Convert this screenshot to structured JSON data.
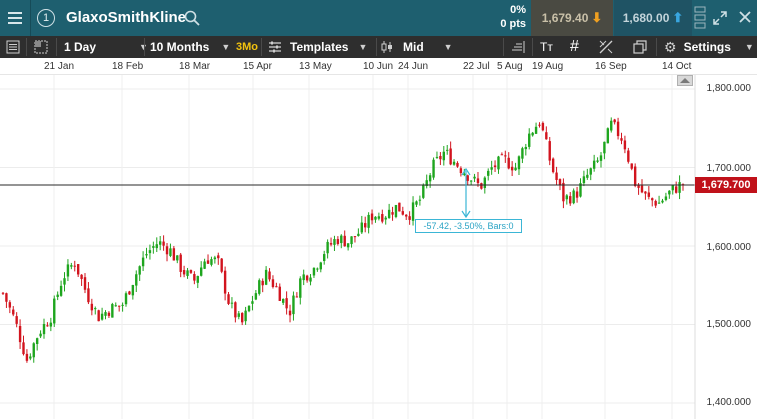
{
  "header": {
    "instrument_number": "1",
    "instrument_name": "GlaxoSmithKline",
    "change_percent": "0%",
    "change_points": "0 pts",
    "sell_price": "1,679.40",
    "buy_price": "1,680.00"
  },
  "toolbar": {
    "interval": "1 Day",
    "range": "10 Months",
    "range_badge": "3Mo",
    "templates_label": "Templates",
    "price_type": "Mid",
    "settings_label": "Settings"
  },
  "date_axis": [
    "21 Jan",
    "18 Feb",
    "18 Mar",
    "15 Apr",
    "13 May",
    "10 Jun",
    "24 Jun",
    "22 Jul",
    "5 Aug",
    "19 Aug",
    "16 Sep",
    "14 Oct"
  ],
  "price_axis": [
    "1,800.000",
    "1,700.000",
    "1,600.000",
    "1,500.000",
    "1,400.000"
  ],
  "current_price_label": "1,679.700",
  "measure_readout": "-57.42, -3.50%, Bars:0",
  "colors": {
    "header_bg": "#1e5f6f",
    "toolbar_bg": "#2e2e2e",
    "up_candle": "#1ea51e",
    "down_candle": "#d2141e",
    "current_price": "#c0111a",
    "measure": "#3bb6d6"
  },
  "chart_data": {
    "type": "candlestick",
    "y_range": [
      1400,
      1800
    ],
    "current_price": 1679.7,
    "x_ticks": [
      "21 Jan",
      "18 Feb",
      "18 Mar",
      "15 Apr",
      "13 May",
      "10 Jun",
      "24 Jun",
      "22 Jul",
      "5 Aug",
      "19 Aug",
      "16 Sep",
      "14 Oct"
    ],
    "close_path": [
      1540,
      1505,
      1455,
      1490,
      1510,
      1560,
      1580,
      1540,
      1510,
      1520,
      1525,
      1560,
      1590,
      1605,
      1595,
      1570,
      1555,
      1585,
      1580,
      1525,
      1500,
      1535,
      1565,
      1545,
      1515,
      1560,
      1570,
      1595,
      1610,
      1605,
      1620,
      1640,
      1640,
      1650,
      1640,
      1660,
      1700,
      1720,
      1705,
      1690,
      1675,
      1700,
      1710,
      1700,
      1740,
      1760,
      1700,
      1660,
      1665,
      1690,
      1710,
      1755,
      1735,
      1680,
      1660,
      1655,
      1670,
      1680
    ]
  }
}
